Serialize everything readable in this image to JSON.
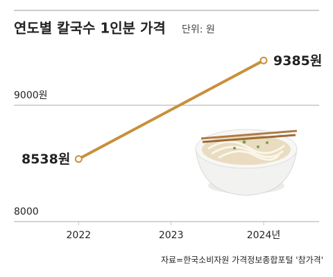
{
  "chart_data": {
    "type": "line",
    "title": "연도별 칼국수 1인분 가격",
    "subtitle": "단위: 원",
    "x": [
      2022,
      2024
    ],
    "values": [
      8538,
      9385
    ],
    "value_labels": [
      "8538원",
      "9385원"
    ],
    "color": "#c8903a",
    "xlim": [
      2021.3,
      2024.6
    ],
    "xticks": [
      {
        "value": 2022,
        "label": "2022"
      },
      {
        "value": 2023,
        "label": "2023"
      },
      {
        "value": 2024,
        "label": "2024년"
      }
    ],
    "ylim": [
      8000,
      9800
    ],
    "yticks": [
      8000,
      {
        "value": 9000,
        "label": "9000원"
      }
    ],
    "grid": true,
    "source": "자료=한국소비자원 가격정보종합포털 '참가격'"
  }
}
